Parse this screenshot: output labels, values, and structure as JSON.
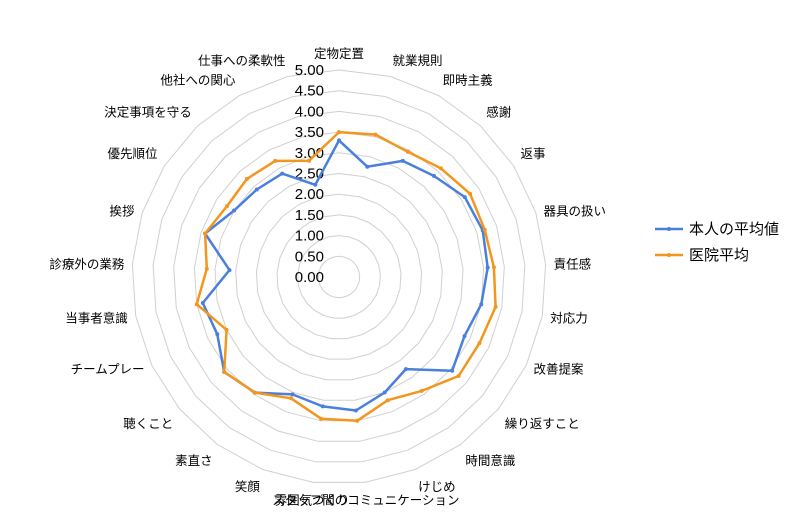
{
  "chart_data": {
    "type": "radar",
    "title": "",
    "rlim": [
      0,
      5
    ],
    "ticks": [
      "0.00",
      "0.50",
      "1.00",
      "1.50",
      "2.00",
      "2.50",
      "3.00",
      "3.50",
      "4.00",
      "4.50",
      "5.00"
    ],
    "categories": [
      "定物定置",
      "就業規則",
      "即時主義",
      "感謝",
      "返事",
      "器具の扱い",
      "責任感",
      "対応力",
      "改善提案",
      "繰り返すこと",
      "時間意識",
      "けじめ",
      "スタッフ間のコミュニケーション",
      "雰囲気づくり",
      "笑顔",
      "素直さ",
      "聴くこと",
      "チームプレー",
      "当事者意識",
      "診療外の業務",
      "挨拶",
      "優先順位",
      "決定事項を守る",
      "他社への関心",
      "仕事への柔軟性"
    ],
    "series": [
      {
        "name": "本人の平均値",
        "color": "#4a7fdc",
        "values": [
          3.3,
          2.75,
          3.2,
          3.35,
          3.6,
          3.65,
          3.6,
          3.5,
          3.35,
          3.55,
          2.75,
          3.0,
          3.25,
          3.15,
          3.05,
          3.45,
          3.6,
          3.25,
          3.35,
          2.65,
          3.4,
          3.0,
          2.9,
          2.85,
          2.3
        ]
      },
      {
        "name": "医院平均",
        "color": "#f2961e",
        "values": [
          3.5,
          3.55,
          3.45,
          3.6,
          3.75,
          3.7,
          3.75,
          3.85,
          3.75,
          3.75,
          3.4,
          3.2,
          3.5,
          3.45,
          3.15,
          3.45,
          3.6,
          3.0,
          3.5,
          3.2,
          3.4,
          3.2,
          3.25,
          3.2,
          2.9
        ]
      }
    ],
    "legend": "right",
    "grid": true
  }
}
